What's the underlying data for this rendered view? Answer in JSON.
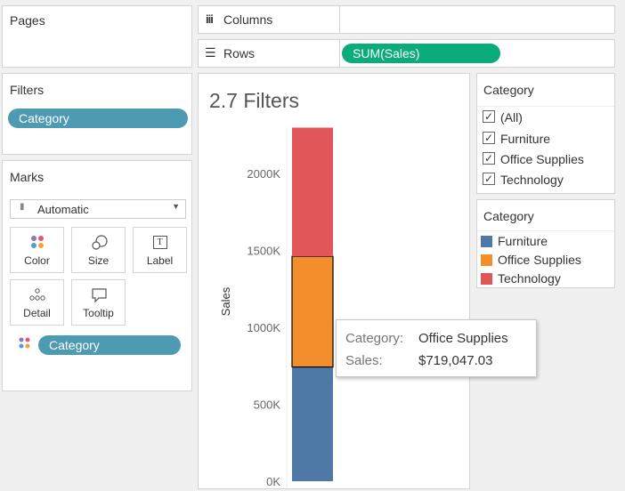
{
  "pages": {
    "title": "Pages"
  },
  "columns": {
    "label": "Columns",
    "icon": "columns-icon"
  },
  "rows": {
    "label": "Rows",
    "icon": "rows-icon",
    "pill": "SUM(Sales)"
  },
  "filters": {
    "title": "Filters",
    "pill": "Category"
  },
  "marks": {
    "title": "Marks",
    "type_value": "Automatic",
    "buttons": [
      {
        "label": "Color",
        "icon": "color-dots-icon"
      },
      {
        "label": "Size",
        "icon": "size-icon"
      },
      {
        "label": "Label",
        "icon": "label-icon",
        "glyph": "T"
      },
      {
        "label": "Detail",
        "icon": "detail-icon"
      },
      {
        "label": "Tooltip",
        "icon": "tooltip-icon"
      }
    ],
    "color_pill": "Category"
  },
  "sheet": {
    "title": "2.7 Filters"
  },
  "chart_data": {
    "type": "bar",
    "stacked": true,
    "categories": [
      ""
    ],
    "series": [
      {
        "name": "Furniture",
        "values": [
          741999.8
        ],
        "color": "#4e79a7"
      },
      {
        "name": "Office Supplies",
        "values": [
          719047.03
        ],
        "color": "#f28e2b"
      },
      {
        "name": "Technology",
        "values": [
          836154.03
        ],
        "color": "#e15759"
      }
    ],
    "ylabel": "Sales",
    "yticks": [
      "0K",
      "500K",
      "1000K",
      "1500K",
      "2000K"
    ],
    "ytick_values": [
      0,
      500000,
      1000000,
      1500000,
      2000000
    ],
    "ylim": [
      0,
      2300000
    ],
    "highlighted_series": "Office Supplies"
  },
  "tooltip": {
    "rows": [
      {
        "key": "Category:",
        "value": "Office Supplies"
      },
      {
        "key": "Sales:",
        "value": "$719,047.03"
      }
    ]
  },
  "filter_card": {
    "title": "Category",
    "items": [
      {
        "label": "(All)",
        "checked": true
      },
      {
        "label": "Furniture",
        "checked": true
      },
      {
        "label": "Office Supplies",
        "checked": true
      },
      {
        "label": "Technology",
        "checked": true
      }
    ]
  },
  "legend_card": {
    "title": "Category",
    "items": [
      {
        "label": "Furniture",
        "color": "#4e79a7"
      },
      {
        "label": "Office Supplies",
        "color": "#f28e2b"
      },
      {
        "label": "Technology",
        "color": "#e15759"
      }
    ]
  }
}
